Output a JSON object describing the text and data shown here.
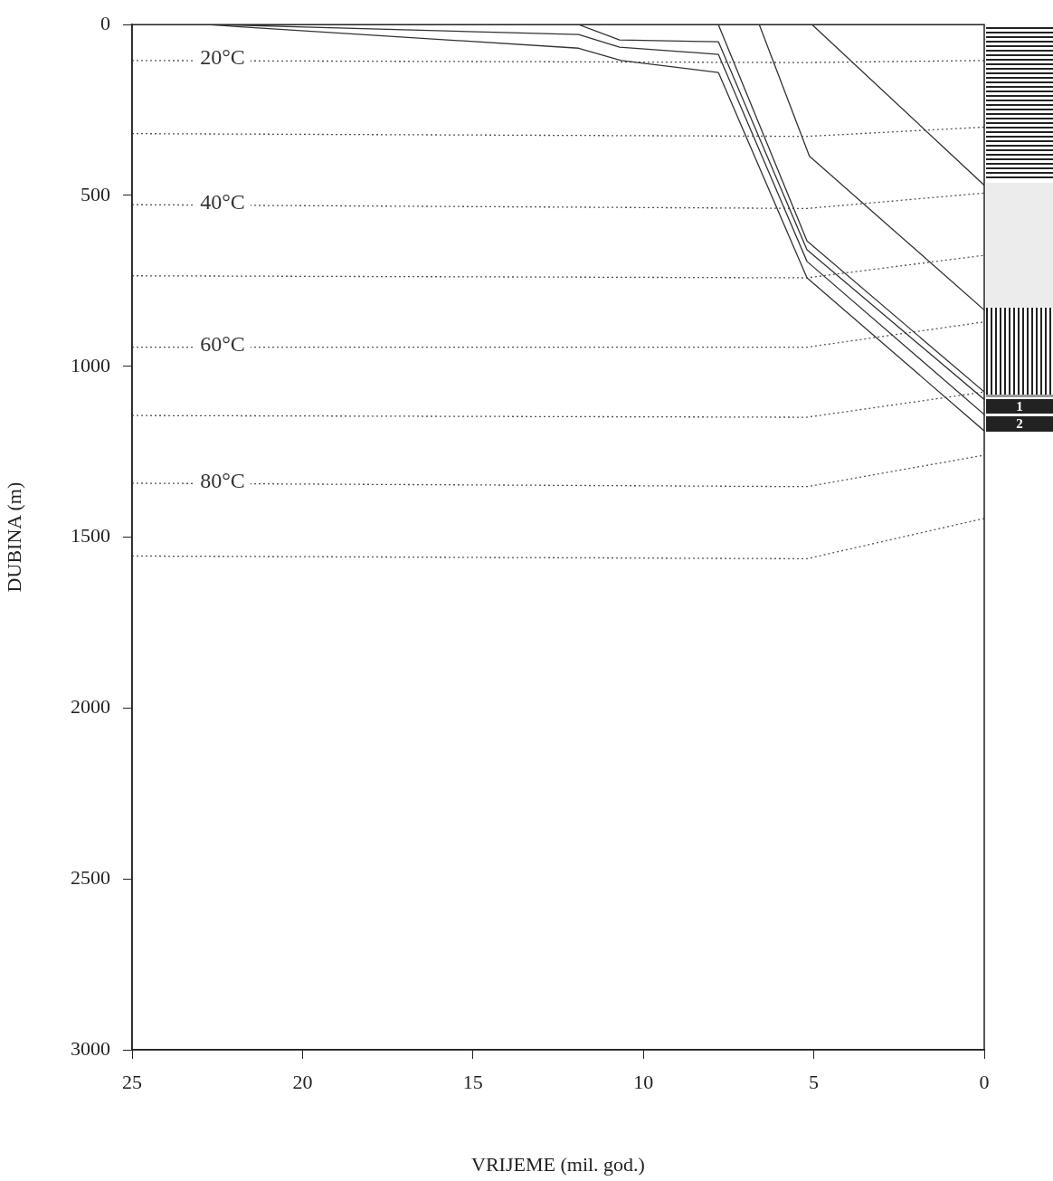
{
  "chart_data": {
    "type": "line",
    "xlabel": "VRIJEME (mil. god.)",
    "ylabel": "DUBINA (m)",
    "xlim": [
      25,
      0
    ],
    "xticks": [
      25,
      20,
      15,
      10,
      5,
      0
    ],
    "ylim": [
      3000,
      0
    ],
    "yticks": [
      0,
      500,
      1000,
      1500,
      2000,
      2500,
      3000
    ],
    "grid": false,
    "legend": false,
    "marker": "none",
    "annotations": [
      "1",
      "2"
    ],
    "series": [
      {
        "color": "#333333",
        "line_style": "solid",
        "x": [
          22.8,
          11.9,
          10.65,
          7.8,
          5.2,
          0
        ],
        "values": [
          0,
          69,
          105,
          140,
          741,
          1189
        ]
      },
      {
        "color": "#333333",
        "line_style": "solid",
        "x": [
          22.5,
          11.9,
          10.7,
          7.8,
          5.2,
          0
        ],
        "values": [
          0,
          29,
          66,
          87,
          693,
          1141
        ]
      },
      {
        "color": "#333333",
        "line_style": "solid",
        "x": [
          11.9,
          10.7,
          7.8,
          5.2,
          0
        ],
        "values": [
          0,
          45,
          50,
          659,
          1097
        ]
      },
      {
        "color": "#333333",
        "line_style": "solid",
        "x": [
          7.8,
          5.2,
          0
        ],
        "values": [
          0,
          633,
          1075
        ]
      },
      {
        "color": "#333333",
        "line_style": "solid",
        "x": [
          6.6,
          5.13,
          0
        ],
        "values": [
          0,
          385,
          835
        ]
      },
      {
        "color": "#333333",
        "line_style": "solid",
        "x": [
          5.05,
          0
        ],
        "values": [
          0,
          470
        ]
      },
      {
        "name": "20°C",
        "color": "#555555",
        "line_style": "dotted",
        "x": [
          25,
          5.2,
          0
        ],
        "values": [
          105,
          111,
          105
        ]
      },
      {
        "color": "#555555",
        "line_style": "dotted",
        "x": [
          25,
          5.2,
          0
        ],
        "values": [
          319,
          327,
          300
        ]
      },
      {
        "name": "40°C",
        "color": "#555555",
        "line_style": "dotted",
        "x": [
          25,
          5.2,
          0
        ],
        "values": [
          527,
          538,
          493
        ]
      },
      {
        "color": "#555555",
        "line_style": "dotted",
        "x": [
          25,
          5.2,
          0
        ],
        "values": [
          735,
          741,
          675
        ]
      },
      {
        "name": "60°C",
        "color": "#555555",
        "line_style": "dotted",
        "x": [
          25,
          5.2,
          0
        ],
        "values": [
          944,
          944,
          870
        ]
      },
      {
        "color": "#555555",
        "line_style": "dotted",
        "x": [
          25,
          5.2,
          0
        ],
        "values": [
          1144,
          1149,
          1075
        ]
      },
      {
        "name": "80°C",
        "color": "#555555",
        "line_style": "dotted",
        "x": [
          25,
          5.2,
          0
        ],
        "values": [
          1342,
          1352,
          1260
        ]
      },
      {
        "color": "#555555",
        "line_style": "dotted",
        "x": [
          25,
          5.2,
          0
        ],
        "values": [
          1555,
          1563,
          1445
        ]
      }
    ]
  }
}
